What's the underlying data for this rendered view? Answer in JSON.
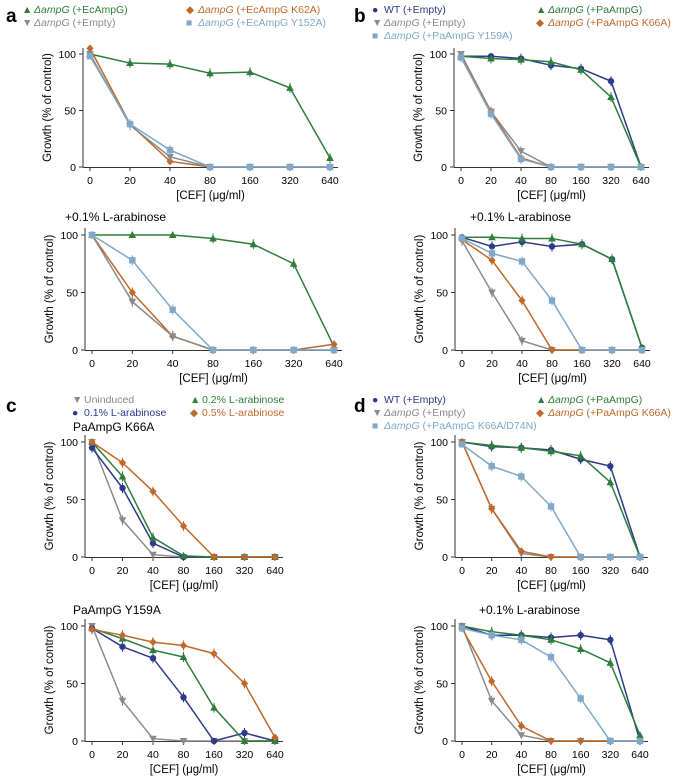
{
  "figure": {
    "labels": {
      "a": "a",
      "b": "b",
      "c": "c",
      "d": "d"
    },
    "x_ticks": [
      "0",
      "20",
      "40",
      "80",
      "160",
      "320",
      "640"
    ],
    "y_ticks": [
      "0",
      "50",
      "100"
    ],
    "xlabel": "[CEF] (μg/ml)",
    "ylabel": "Growth (% of control)",
    "legends": {
      "a": [
        {
          "marker": "▲",
          "italic": "ΔampG",
          "text": " (+EcAmpG)",
          "color": "#2e7d3a"
        },
        {
          "marker": "◆",
          "italic": "ΔampG",
          "text": " (+EcAmpG K62A)",
          "color": "#c0692a"
        },
        {
          "marker": "▼",
          "italic": "ΔampG",
          "text": " (+Empty)",
          "color": "#8a8a8a"
        },
        {
          "marker": "■",
          "italic": "ΔampG",
          "text": " (+EcAmpG Y152A)",
          "color": "#7fa8c9"
        }
      ],
      "b": [
        {
          "marker": "●",
          "italic": "",
          "text": "WT (+Empty)",
          "color": "#2b3a8a"
        },
        {
          "marker": "▲",
          "italic": "ΔampG",
          "text": " (+PaAmpG)",
          "color": "#2e7d3a"
        },
        {
          "marker": "▼",
          "italic": "ΔampG",
          "text": " (+Empty)",
          "color": "#8a8a8a"
        },
        {
          "marker": "◆",
          "italic": "ΔampG",
          "text": " (+PaAmpG K66A)",
          "color": "#c0692a"
        },
        {
          "marker": "■",
          "italic": "ΔampG",
          "text": " (+PaAmpG Y159A)",
          "color": "#7fa8c9"
        }
      ],
      "c": [
        {
          "marker": "▼",
          "italic": "",
          "text": "Uninduced",
          "color": "#8a8a8a"
        },
        {
          "marker": "▲",
          "italic": "",
          "text": "0.2% L-arabinose",
          "color": "#2e7d3a"
        },
        {
          "marker": "●",
          "italic": "",
          "text": "0.1% L-arabinose",
          "color": "#2b3a8a"
        },
        {
          "marker": "◆",
          "italic": "",
          "text": "0.5% L-arabinose",
          "color": "#c0692a"
        }
      ],
      "d": [
        {
          "marker": "●",
          "italic": "",
          "text": "WT (+Empty)",
          "color": "#2b3a8a"
        },
        {
          "marker": "▲",
          "italic": "ΔampG",
          "text": " (+PaAmpG)",
          "color": "#2e7d3a"
        },
        {
          "marker": "▼",
          "italic": "ΔampG",
          "text": " (+Empty)",
          "color": "#8a8a8a"
        },
        {
          "marker": "◆",
          "italic": "ΔampG",
          "text": " (+PaAmpG K66A)",
          "color": "#c0692a"
        },
        {
          "marker": "■",
          "italic": "ΔampG",
          "text": " (+PaAmpG K66A/D74N)",
          "color": "#7fa8c9"
        }
      ]
    }
  },
  "colors": {
    "green": "#2e7d3a",
    "orange": "#c0692a",
    "gray": "#8a8a8a",
    "lightblue": "#7fa8c9",
    "navy": "#2b3a8a"
  },
  "chart_data": [
    {
      "id": "a-top",
      "panel": "a",
      "type": "line",
      "title": "",
      "categories": [
        "0",
        "20",
        "40",
        "80",
        "160",
        "320",
        "640"
      ],
      "ylim": [
        0,
        110
      ],
      "xlabel": "[CEF] (μg/ml)",
      "ylabel": "Growth (% of control)",
      "series": [
        {
          "name": "ΔampG (+EcAmpG)",
          "color": "green",
          "marker": "triangle-up",
          "values": [
            100,
            92,
            91,
            83,
            84,
            70,
            8
          ]
        },
        {
          "name": "ΔampG (+EcAmpG K62A)",
          "color": "orange",
          "marker": "diamond",
          "values": [
            105,
            38,
            5,
            0,
            0,
            0,
            0
          ]
        },
        {
          "name": "ΔampG (+Empty)",
          "color": "gray",
          "marker": "triangle-down",
          "values": [
            100,
            37,
            9,
            0,
            0,
            0,
            0
          ]
        },
        {
          "name": "ΔampG (+EcAmpG Y152A)",
          "color": "lightblue",
          "marker": "square",
          "values": [
            98,
            38,
            15,
            0,
            0,
            0,
            0
          ]
        }
      ]
    },
    {
      "id": "a-bottom",
      "panel": "a",
      "type": "line",
      "title": "+0.1% L-arabinose",
      "categories": [
        "0",
        "20",
        "40",
        "80",
        "160",
        "320",
        "640"
      ],
      "ylim": [
        0,
        110
      ],
      "xlabel": "[CEF] (μg/ml)",
      "ylabel": "Growth (% of control)",
      "series": [
        {
          "name": "ΔampG (+EcAmpG)",
          "color": "green",
          "marker": "triangle-up",
          "values": [
            100,
            100,
            100,
            97,
            92,
            75,
            3
          ]
        },
        {
          "name": "ΔampG (+EcAmpG K62A)",
          "color": "orange",
          "marker": "diamond",
          "values": [
            100,
            50,
            12,
            0,
            0,
            0,
            5
          ]
        },
        {
          "name": "ΔampG (+Empty)",
          "color": "gray",
          "marker": "triangle-down",
          "values": [
            100,
            42,
            12,
            0,
            0,
            0,
            0
          ]
        },
        {
          "name": "ΔampG (+EcAmpG Y152A)",
          "color": "lightblue",
          "marker": "square",
          "values": [
            100,
            78,
            35,
            0,
            0,
            0,
            0
          ]
        }
      ]
    },
    {
      "id": "b-top",
      "panel": "b",
      "type": "line",
      "title": "",
      "categories": [
        "0",
        "20",
        "40",
        "80",
        "160",
        "320",
        "640"
      ],
      "ylim": [
        0,
        110
      ],
      "xlabel": "[CEF] (μg/ml)",
      "ylabel": "Growth (% of control)",
      "series": [
        {
          "name": "WT (+Empty)",
          "color": "navy",
          "marker": "circle",
          "values": [
            98,
            98,
            96,
            90,
            87,
            76,
            0
          ]
        },
        {
          "name": "ΔampG (+PaAmpG)",
          "color": "green",
          "marker": "triangle-up",
          "values": [
            98,
            96,
            95,
            93,
            86,
            62,
            0
          ]
        },
        {
          "name": "ΔampG (+Empty)",
          "color": "gray",
          "marker": "triangle-down",
          "values": [
            100,
            49,
            14,
            0,
            0,
            0,
            0
          ]
        },
        {
          "name": "ΔampG (+PaAmpG K66A)",
          "color": "orange",
          "marker": "diamond",
          "values": [
            98,
            49,
            8,
            0,
            0,
            0,
            0
          ]
        },
        {
          "name": "ΔampG (+PaAmpG Y159A)",
          "color": "lightblue",
          "marker": "square",
          "values": [
            97,
            47,
            7,
            0,
            0,
            0,
            0
          ]
        }
      ]
    },
    {
      "id": "b-bottom",
      "panel": "b",
      "type": "line",
      "title": "+0.1% L-arabinose",
      "categories": [
        "0",
        "20",
        "40",
        "80",
        "160",
        "320",
        "640"
      ],
      "ylim": [
        0,
        110
      ],
      "xlabel": "[CEF] (μg/ml)",
      "ylabel": "Growth (% of control)",
      "series": [
        {
          "name": "WT (+Empty)",
          "color": "navy",
          "marker": "circle",
          "values": [
            98,
            90,
            94,
            90,
            92,
            79,
            2
          ]
        },
        {
          "name": "ΔampG (+PaAmpG)",
          "color": "green",
          "marker": "triangle-up",
          "values": [
            98,
            98,
            97,
            97,
            92,
            79,
            2
          ]
        },
        {
          "name": "ΔampG (+Empty)",
          "color": "gray",
          "marker": "triangle-down",
          "values": [
            95,
            50,
            8,
            0,
            0,
            0,
            0
          ]
        },
        {
          "name": "ΔampG (+PaAmpG K66A)",
          "color": "orange",
          "marker": "diamond",
          "values": [
            96,
            78,
            43,
            0,
            0,
            0,
            0
          ]
        },
        {
          "name": "ΔampG (+PaAmpG Y159A)",
          "color": "lightblue",
          "marker": "square",
          "values": [
            97,
            84,
            77,
            43,
            0,
            0,
            0
          ]
        }
      ]
    },
    {
      "id": "c-top",
      "panel": "c",
      "type": "line",
      "title": "PaAmpG K66A",
      "categories": [
        "0",
        "20",
        "40",
        "80",
        "160",
        "320",
        "640"
      ],
      "ylim": [
        0,
        110
      ],
      "xlabel": "[CEF] (μg/ml)",
      "ylabel": "Growth (% of control)",
      "series": [
        {
          "name": "Uninduced",
          "color": "gray",
          "marker": "triangle-down",
          "values": [
            100,
            32,
            2,
            0,
            0,
            0,
            0
          ]
        },
        {
          "name": "0.1% L-arabinose",
          "color": "navy",
          "marker": "circle",
          "values": [
            95,
            60,
            12,
            0,
            0,
            0,
            0
          ]
        },
        {
          "name": "0.2% L-arabinose",
          "color": "green",
          "marker": "triangle-up",
          "values": [
            100,
            70,
            17,
            1,
            0,
            0,
            0
          ]
        },
        {
          "name": "0.5% L-arabinose",
          "color": "orange",
          "marker": "diamond",
          "values": [
            100,
            82,
            57,
            27,
            0,
            0,
            0
          ]
        }
      ]
    },
    {
      "id": "c-bottom",
      "panel": "c",
      "type": "line",
      "title": "PaAmpG Y159A",
      "categories": [
        "0",
        "20",
        "40",
        "80",
        "160",
        "320",
        "640"
      ],
      "ylim": [
        0,
        110
      ],
      "xlabel": "[CEF] (μg/ml)",
      "ylabel": "Growth (% of control)",
      "series": [
        {
          "name": "Uninduced",
          "color": "gray",
          "marker": "triangle-down",
          "values": [
            100,
            35,
            2,
            0,
            0,
            0,
            0
          ]
        },
        {
          "name": "0.1% L-arabinose",
          "color": "navy",
          "marker": "circle",
          "values": [
            98,
            82,
            72,
            38,
            0,
            7,
            0
          ]
        },
        {
          "name": "0.2% L-arabinose",
          "color": "green",
          "marker": "triangle-up",
          "values": [
            98,
            89,
            79,
            73,
            29,
            0,
            0
          ]
        },
        {
          "name": "0.5% L-arabinose",
          "color": "orange",
          "marker": "diamond",
          "values": [
            97,
            92,
            86,
            83,
            76,
            50,
            3
          ]
        }
      ]
    },
    {
      "id": "d-top",
      "panel": "d",
      "type": "line",
      "title": "",
      "categories": [
        "0",
        "20",
        "40",
        "80",
        "160",
        "320",
        "640"
      ],
      "ylim": [
        0,
        110
      ],
      "xlabel": "[CEF] (μg/ml)",
      "ylabel": "Growth (% of control)",
      "series": [
        {
          "name": "WT (+Empty)",
          "color": "navy",
          "marker": "circle",
          "values": [
            100,
            96,
            95,
            93,
            85,
            79,
            0
          ]
        },
        {
          "name": "ΔampG (+PaAmpG)",
          "color": "green",
          "marker": "triangle-up",
          "values": [
            100,
            97,
            95,
            92,
            88,
            65,
            0
          ]
        },
        {
          "name": "ΔampG (+Empty)",
          "color": "gray",
          "marker": "triangle-down",
          "values": [
            100,
            42,
            3,
            0,
            0,
            0,
            0
          ]
        },
        {
          "name": "ΔampG (+PaAmpG K66A)",
          "color": "orange",
          "marker": "diamond",
          "values": [
            100,
            42,
            5,
            0,
            0,
            0,
            0
          ]
        },
        {
          "name": "ΔampG (+PaAmpG K66A/D74N)",
          "color": "lightblue",
          "marker": "square",
          "values": [
            98,
            79,
            70,
            44,
            0,
            0,
            0
          ]
        }
      ]
    },
    {
      "id": "d-bottom",
      "panel": "d",
      "type": "line",
      "title": "+0.1% L-arabinose",
      "categories": [
        "0",
        "20",
        "40",
        "80",
        "160",
        "320",
        "640"
      ],
      "ylim": [
        0,
        110
      ],
      "xlabel": "[CEF] (μg/ml)",
      "ylabel": "Growth (% of control)",
      "series": [
        {
          "name": "WT (+Empty)",
          "color": "navy",
          "marker": "circle",
          "values": [
            100,
            92,
            92,
            90,
            92,
            88,
            0
          ]
        },
        {
          "name": "ΔampG (+PaAmpG)",
          "color": "green",
          "marker": "triangle-up",
          "values": [
            100,
            95,
            92,
            88,
            80,
            68,
            5
          ]
        },
        {
          "name": "ΔampG (+Empty)",
          "color": "gray",
          "marker": "triangle-down",
          "values": [
            100,
            35,
            5,
            0,
            0,
            0,
            0
          ]
        },
        {
          "name": "ΔampG (+PaAmpG K66A)",
          "color": "orange",
          "marker": "diamond",
          "values": [
            98,
            52,
            13,
            0,
            0,
            0,
            0
          ]
        },
        {
          "name": "ΔampG (+PaAmpG K66A/D74N)",
          "color": "lightblue",
          "marker": "square",
          "values": [
            98,
            92,
            88,
            73,
            37,
            0,
            0
          ]
        }
      ]
    }
  ]
}
